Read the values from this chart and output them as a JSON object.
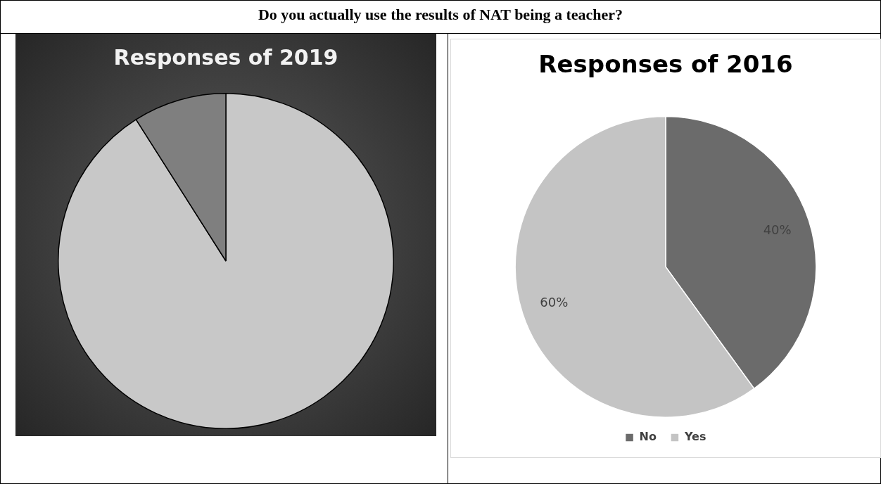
{
  "chart_data": [
    {
      "type": "pie",
      "title": "Responses of 2019",
      "annotations": [
        "Do you actually use the results of NAT being a teacher?"
      ],
      "categories": [
        null,
        null
      ],
      "values": [
        91,
        9
      ],
      "colors": [
        "#c8c8c8",
        "#7f7f7f"
      ],
      "legend": false
    },
    {
      "type": "pie",
      "title": "Responses of 2016",
      "categories": [
        "No",
        "Yes"
      ],
      "values": [
        40,
        60
      ],
      "colors": [
        "#6b6b6b",
        "#c4c4c4"
      ],
      "value_labels": [
        "40%",
        "60%"
      ],
      "legend": "bottom"
    }
  ]
}
